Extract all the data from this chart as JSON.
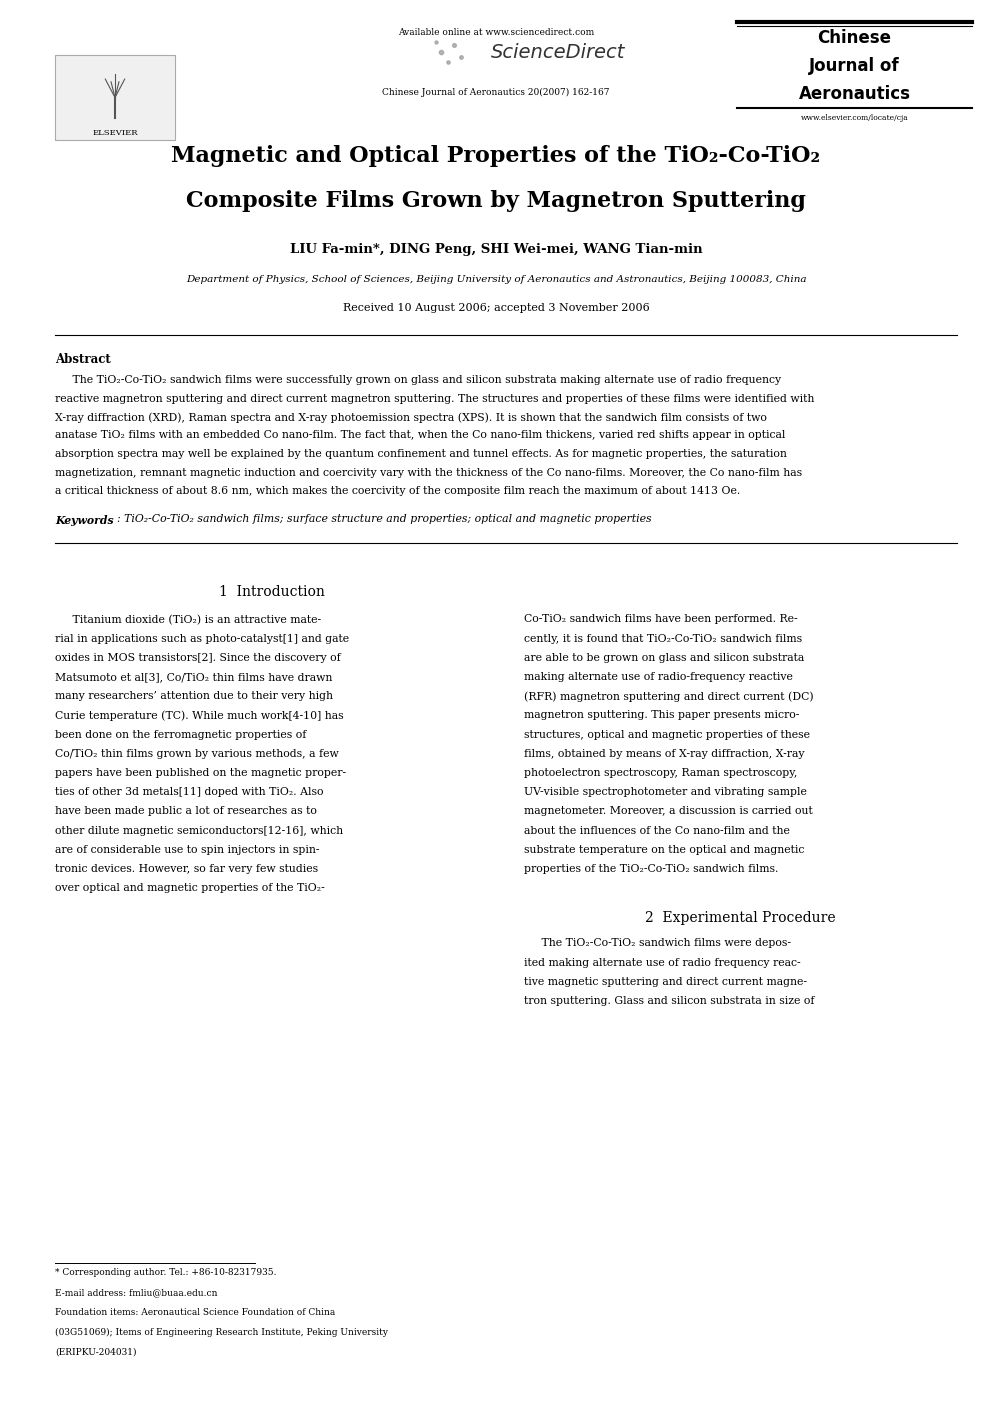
{
  "bg_color": "#ffffff",
  "page_width": 9.92,
  "page_height": 14.03,
  "available_online": "Available online at www.sciencedirect.com",
  "sciencedirect": "ScienceDirect",
  "journal_citation": "Chinese Journal of Aeronautics 20(2007) 162-167",
  "journal_name_line1": "Chinese",
  "journal_name_line2": "Journal of",
  "journal_name_line3": "Aeronautics",
  "journal_url": "www.elsevier.com/locate/cja",
  "title_line1": "Magnetic and Optical Properties of the TiO₂-Co-TiO₂",
  "title_line2": "Composite Films Grown by Magnetron Sputtering",
  "authors": "LIU Fa-min*, DING Peng, SHI Wei-mei, WANG Tian-min",
  "affiliation": "Department of Physics, School of Sciences, Beijing University of Aeronautics and Astronautics, Beijing 100083, China",
  "received": "Received 10 August 2006; accepted 3 November 2006",
  "abstract_label": "Abstract",
  "abstract_indent": "     The TiO₂-Co-TiO₂ sandwich films were successfully grown on glass and silicon substrata making alternate use of radio frequency",
  "abstract_line2": "reactive magnetron sputtering and direct current magnetron sputtering. The structures and properties of these films were identified with",
  "abstract_line3": "X-ray diffraction (XRD), Raman spectra and X-ray photoemission spectra (XPS). It is shown that the sandwich film consists of two",
  "abstract_line4": "anatase TiO₂ films with an embedded Co nano-film. The fact that, when the Co nano-film thickens, varied red shifts appear in optical",
  "abstract_line5": "absorption spectra may well be explained by the quantum confinement and tunnel effects. As for magnetic properties, the saturation",
  "abstract_line6": "magnetization, remnant magnetic induction and coercivity vary with the thickness of the Co nano-films. Moreover, the Co nano-film has",
  "abstract_line7": "a critical thickness of about 8.6 nm, which makes the coercivity of the composite film reach the maximum of about 1413 Oe.",
  "keywords_bold": "Keywords",
  "keywords_rest": ": TiO₂-Co-TiO₂ sandwich films; surface structure and properties; optical and magnetic properties",
  "section1_title": "1  Introduction",
  "intro_col1_lines": [
    "     Titanium dioxide (TiO₂) is an attractive mate-",
    "rial in applications such as photo-catalyst[1] and gate",
    "oxides in MOS transistors[2]. Since the discovery of",
    "Matsumoto et al[3], Co/TiO₂ thin films have drawn",
    "many researchers’ attention due to their very high",
    "Curie temperature (TC). While much work[4-10] has",
    "been done on the ferromagnetic properties of",
    "Co/TiO₂ thin films grown by various methods, a few",
    "papers have been published on the magnetic proper-",
    "ties of other 3d metals[11] doped with TiO₂. Also",
    "have been made public a lot of researches as to",
    "other dilute magnetic semiconductors[12-16], which",
    "are of considerable use to spin injectors in spin-",
    "tronic devices. However, so far very few studies",
    "over optical and magnetic properties of the TiO₂-"
  ],
  "intro_col2_lines": [
    "Co-TiO₂ sandwich films have been performed. Re-",
    "cently, it is found that TiO₂-Co-TiO₂ sandwich films",
    "are able to be grown on glass and silicon substrata",
    "making alternate use of radio-frequency reactive",
    "(RFR) magnetron sputtering and direct current (DC)",
    "magnetron sputtering. This paper presents micro-",
    "structures, optical and magnetic properties of these",
    "films, obtained by means of X-ray diffraction, X-ray",
    "photoelectron spectroscopy, Raman spectroscopy,",
    "UV-visible spectrophotometer and vibrating sample",
    "magnetometer. Moreover, a discussion is carried out",
    "about the influences of the Co nano-film and the",
    "substrate temperature on the optical and magnetic",
    "properties of the TiO₂-Co-TiO₂ sandwich films."
  ],
  "section2_title": "2  Experimental Procedure",
  "exp_col2_lines": [
    "     The TiO₂-Co-TiO₂ sandwich films were depos-",
    "ited making alternate use of radio frequency reac-",
    "tive magnetic sputtering and direct current magne-",
    "tron sputtering. Glass and silicon substrata in size of"
  ],
  "footnote_line": "* Corresponding author. Tel.: +86-10-82317935.",
  "footnote_email": "E-mail address: fmliu@buaa.edu.cn",
  "footnote_f1": "Foundation items: Aeronautical Science Foundation of China",
  "footnote_f2": "(03G51069); Items of Engineering Research Institute, Peking University",
  "footnote_f3": "(ERIPKU-204031)"
}
